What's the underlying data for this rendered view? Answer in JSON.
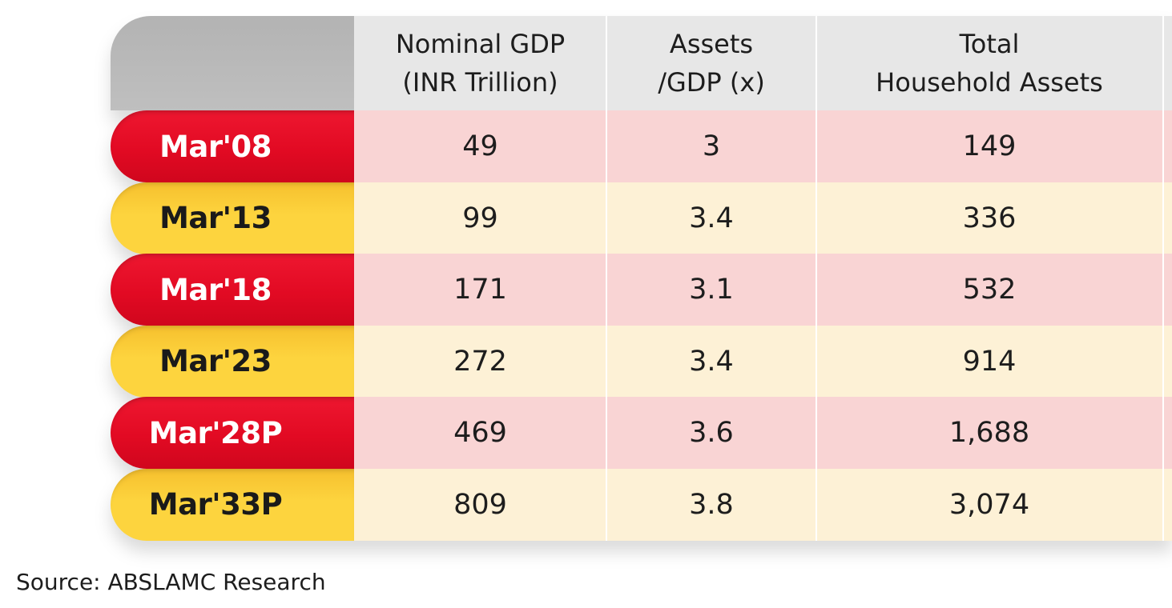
{
  "chart_data": {
    "type": "table",
    "columns": [
      {
        "line1": "Nominal GDP",
        "line2": "(INR Trillion)"
      },
      {
        "line1": "Assets",
        "line2": "/GDP (x)"
      },
      {
        "line1": "Total",
        "line2": "Household Assets"
      }
    ],
    "rows": [
      {
        "label": "Mar'08",
        "values": [
          "49",
          "3",
          "149"
        ]
      },
      {
        "label": "Mar'13",
        "values": [
          "99",
          "3.4",
          "336"
        ]
      },
      {
        "label": "Mar'18",
        "values": [
          "171",
          "3.1",
          "532"
        ]
      },
      {
        "label": "Mar'23",
        "values": [
          "272",
          "3.4",
          "914"
        ]
      },
      {
        "label": "Mar'28P",
        "values": [
          "469",
          "3.6",
          "1,688"
        ]
      },
      {
        "label": "Mar'33P",
        "values": [
          "809",
          "3.8",
          "3,074"
        ]
      }
    ]
  },
  "source": "Source: ABSLAMC Research",
  "colors": {
    "label_red": "#e20a23",
    "label_yellow": "#fdd43e",
    "row_pink": "#f9d4d4",
    "row_cream": "#fdf1d6",
    "header_gray": "#e7e7e7"
  }
}
